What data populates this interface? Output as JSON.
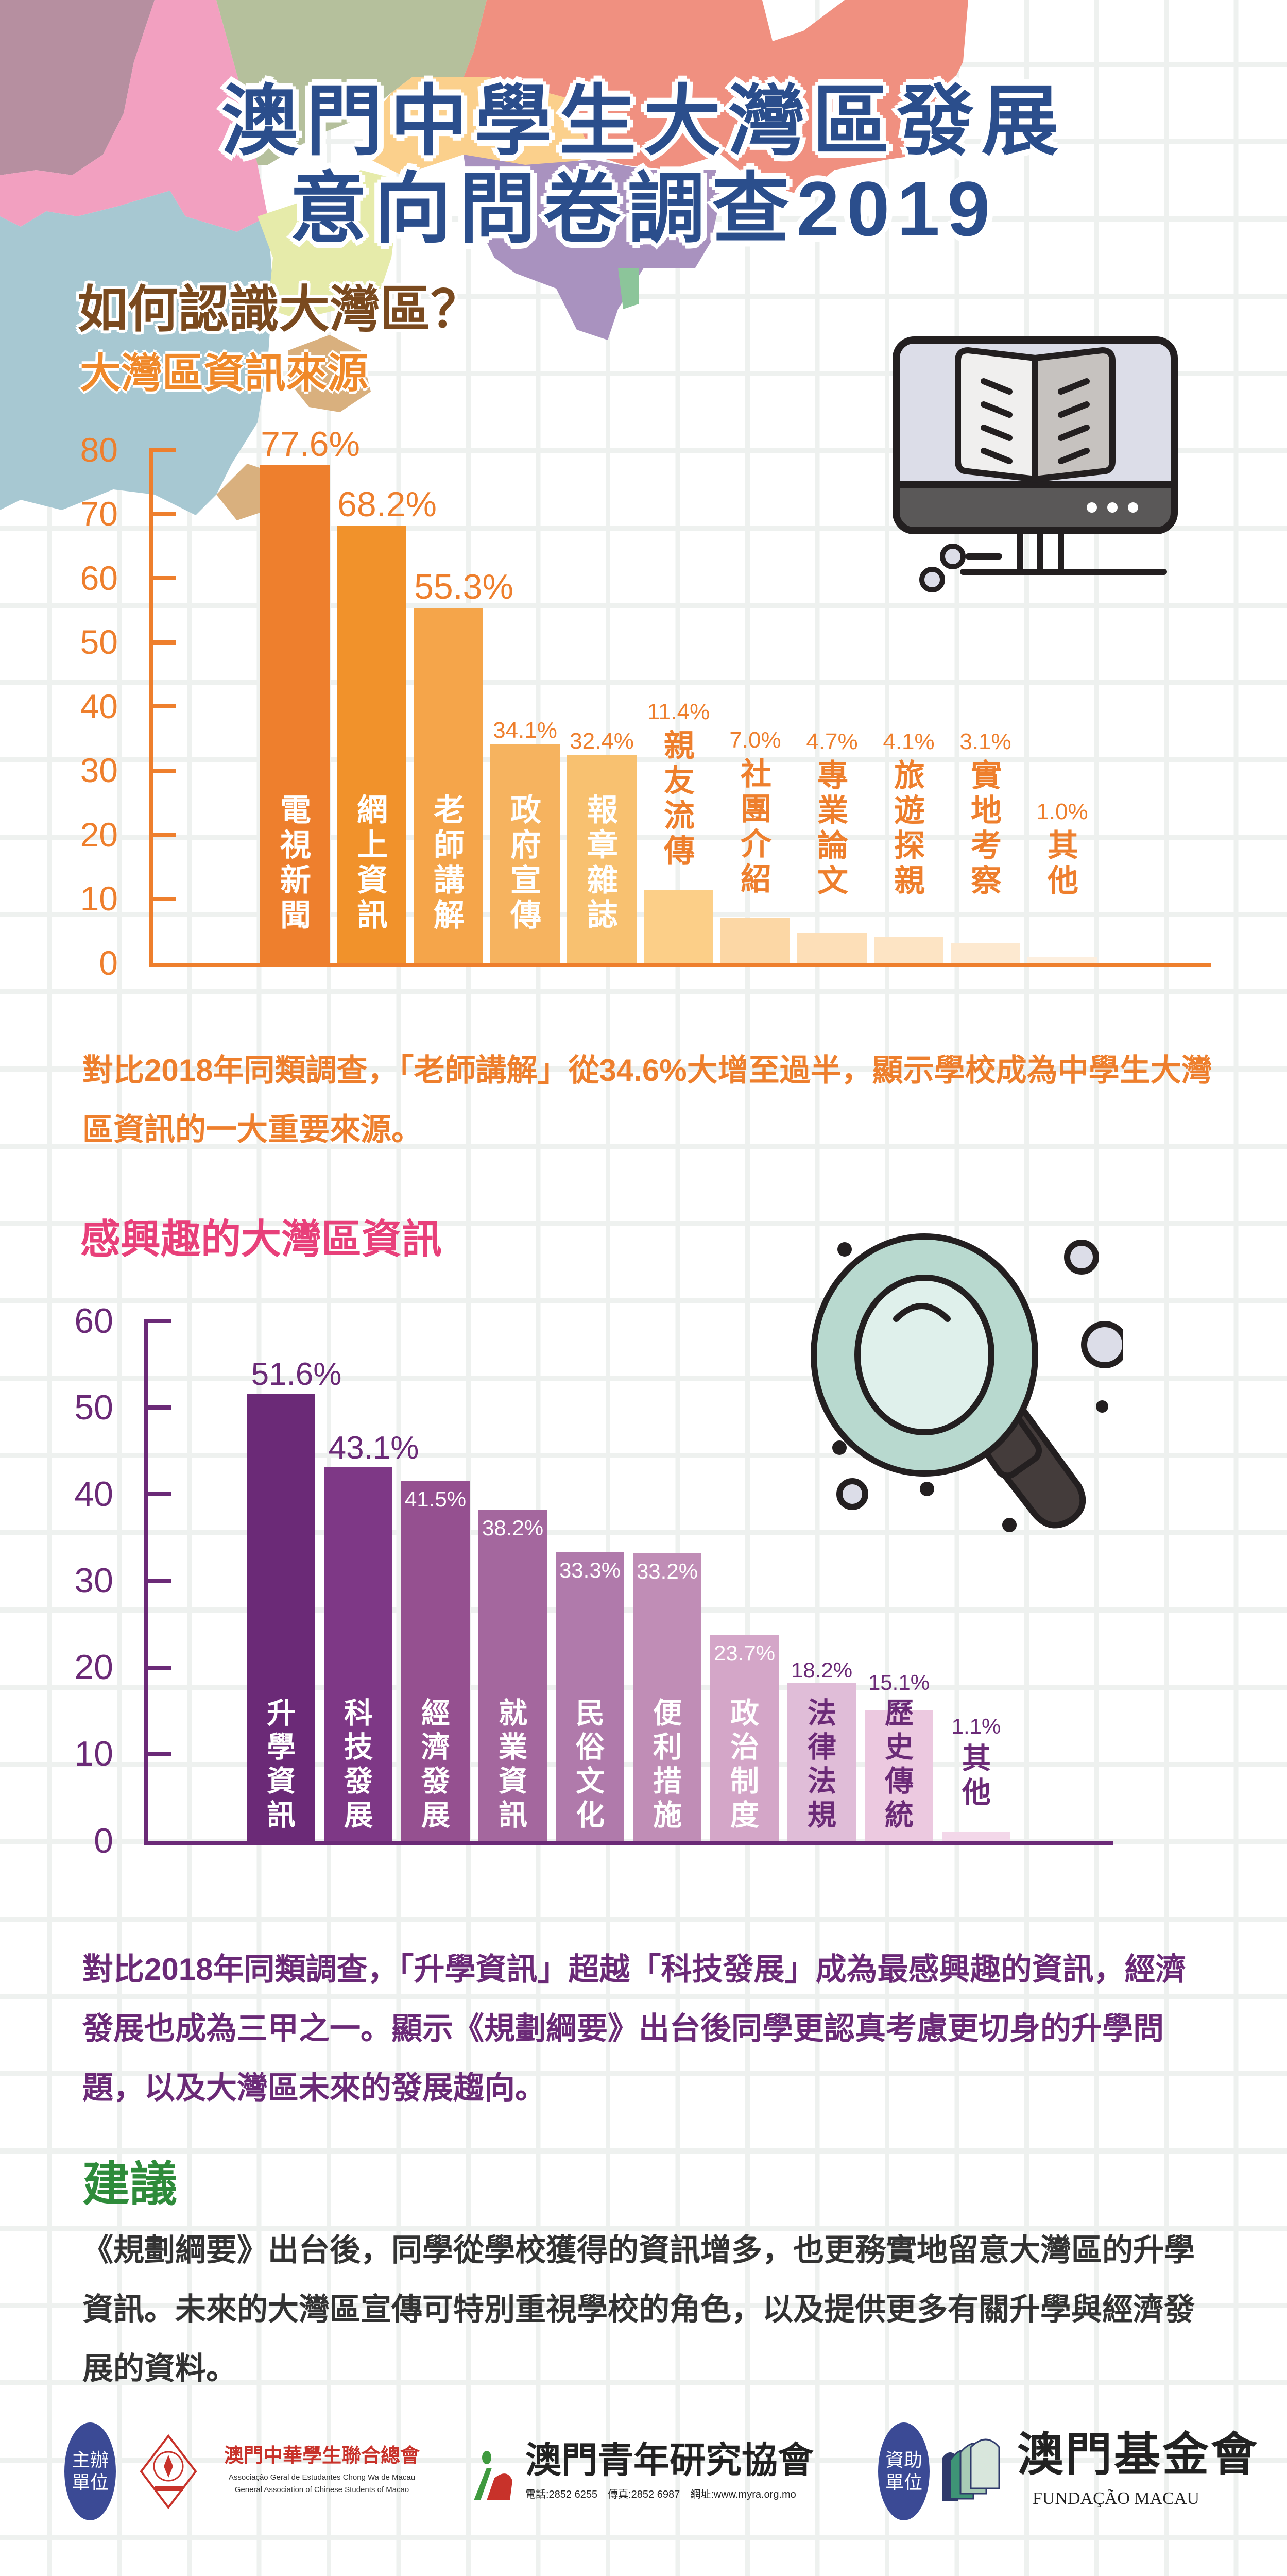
{
  "header": {
    "title_line1": "澳門中學生大灣區發展",
    "title_line2": "意向問卷調查2019"
  },
  "section1": {
    "heading": "如何認識大灣區？",
    "chart_title": "大灣區資訊來源",
    "note": "對比2018年同類調查，「老師講解」從34.6%大增至過半，顯示學校成為中學生大灣區資訊的一大重要來源。"
  },
  "section2": {
    "chart_title": "感興趣的大灣區資訊",
    "note": "對比2018年同類調查，「升學資訊」超越「科技發展」成為最感興趣的資訊，經濟發展也成為三甲之一。顯示《規劃綱要》出台後同學更認真考慮更切身的升學問題，以及大灣區未來的發展趨向。"
  },
  "suggestion": {
    "heading": "建議",
    "text": "《規劃綱要》出台後，同學從學校獲得的資訊增多，也更務實地留意大灣區的升學資訊。未來的大灣區宣傳可特別重視學校的角色，以及提供更多有關升學與經濟發展的資料。"
  },
  "footer": {
    "organizer_badge": "主辦單位",
    "sponsor_badge": "資助單位",
    "org1_name": "澳門中華學生聯合總會",
    "org1_pt": "Associação Geral de Estudantes Chong Wa de Macau",
    "org1_en": "General Association of Chinese Students of Macao",
    "org2_name": "澳門青年研究協會",
    "org2_contact": "電話:2852 6255　傳真:2852 6987　網址:www.myra.org.mo",
    "org3_name": "澳門基金會",
    "org3_pt": "FUNDAÇÃO MACAU"
  },
  "colors": {
    "title": "#2b4e8c",
    "orange": "#ee7f2d",
    "purple": "#6b2a77",
    "pink": "#e8407a",
    "green": "#2e8b3a",
    "brown": "#7a4a1f"
  },
  "chart_data": [
    {
      "type": "bar",
      "title": "大灣區資訊來源",
      "categories": [
        "電視新聞",
        "網上資訊",
        "老師講解",
        "政府宣傳",
        "報章雜誌",
        "親友流傳",
        "社團介紹",
        "專業論文",
        "旅遊探親",
        "實地考察",
        "其他"
      ],
      "values": [
        77.6,
        68.2,
        55.3,
        34.1,
        32.4,
        11.4,
        7.0,
        4.7,
        4.1,
        3.1,
        1.0
      ],
      "value_labels": [
        "77.6%",
        "68.2%",
        "55.3%",
        "34.1%",
        "32.4%",
        "11.4%",
        "7.0%",
        "4.7%",
        "4.1%",
        "3.1%",
        "1.0%"
      ],
      "yticks": [
        "0",
        "10",
        "20",
        "30",
        "40",
        "50",
        "60",
        "70",
        "80"
      ],
      "ylim": [
        0,
        80
      ],
      "xlabel": "",
      "ylabel": "",
      "colors": [
        "#ee7f2d",
        "#f1922b",
        "#f5a54a",
        "#f6b35f",
        "#f8c170",
        "#fccf88",
        "#fcd7a5",
        "#fddfb8",
        "#fde4c4",
        "#fde9d0",
        "#fdefdf"
      ]
    },
    {
      "type": "bar",
      "title": "感興趣的大灣區資訊",
      "categories": [
        "升學資訊",
        "科技發展",
        "經濟發展",
        "就業資訊",
        "民俗文化",
        "便利措施",
        "政治制度",
        "法律法規",
        "歷史傳統",
        "其他"
      ],
      "values": [
        51.6,
        43.1,
        41.5,
        38.2,
        33.3,
        33.2,
        23.7,
        18.2,
        15.1,
        1.1
      ],
      "value_labels": [
        "51.6%",
        "43.1%",
        "41.5%",
        "38.2%",
        "33.3%",
        "33.2%",
        "23.7%",
        "18.2%",
        "15.1%",
        "1.1%"
      ],
      "yticks": [
        "0",
        "10",
        "20",
        "30",
        "40",
        "50",
        "60"
      ],
      "ylim": [
        0,
        60
      ],
      "xlabel": "",
      "ylabel": "",
      "colors": [
        "#6b2a77",
        "#7e3886",
        "#955090",
        "#a4679e",
        "#b07aab",
        "#c08db6",
        "#d4a6c8",
        "#e0bdd8",
        "#ecc9e0",
        "#f3d7e9"
      ]
    }
  ]
}
